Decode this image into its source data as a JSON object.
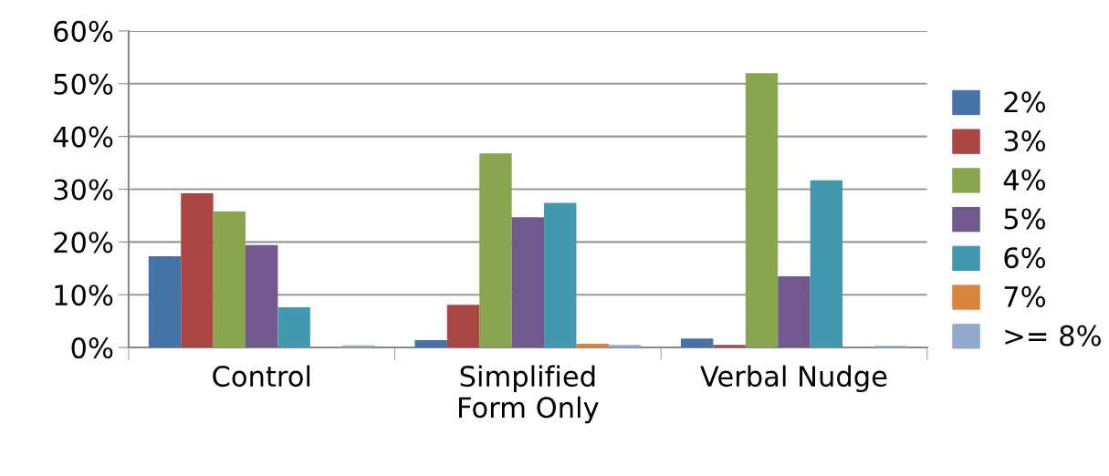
{
  "chart_data": {
    "type": "bar",
    "categories": [
      "Control",
      "Simplified\nForm Only",
      "Verbal Nudge"
    ],
    "series": [
      {
        "name": "2%",
        "color": "#4572a7",
        "values": [
          17.3,
          1.4,
          1.7
        ]
      },
      {
        "name": "3%",
        "color": "#aa4643",
        "values": [
          29.2,
          8.1,
          0.5
        ]
      },
      {
        "name": "4%",
        "color": "#89a54e",
        "values": [
          25.8,
          36.8,
          52.0
        ]
      },
      {
        "name": "5%",
        "color": "#71588f",
        "values": [
          19.4,
          24.7,
          13.5
        ]
      },
      {
        "name": "6%",
        "color": "#4198af",
        "values": [
          7.6,
          27.4,
          31.7
        ]
      },
      {
        "name": "7%",
        "color": "#db843d",
        "values": [
          null,
          0.7,
          null
        ]
      },
      {
        "name": ">= 8%",
        "color": "#93a9cf",
        "values": [
          0.4,
          0.5,
          0.3
        ]
      }
    ],
    "ylim": [
      0,
      60
    ],
    "yticks": [
      {
        "value": 0,
        "label": "0%"
      },
      {
        "value": 10,
        "label": "10%"
      },
      {
        "value": 20,
        "label": "20%"
      },
      {
        "value": 30,
        "label": "30%"
      },
      {
        "value": 40,
        "label": "40%"
      },
      {
        "value": 50,
        "label": "50%"
      },
      {
        "value": 60,
        "label": "60%"
      }
    ],
    "grid": "y",
    "legend": "right"
  }
}
